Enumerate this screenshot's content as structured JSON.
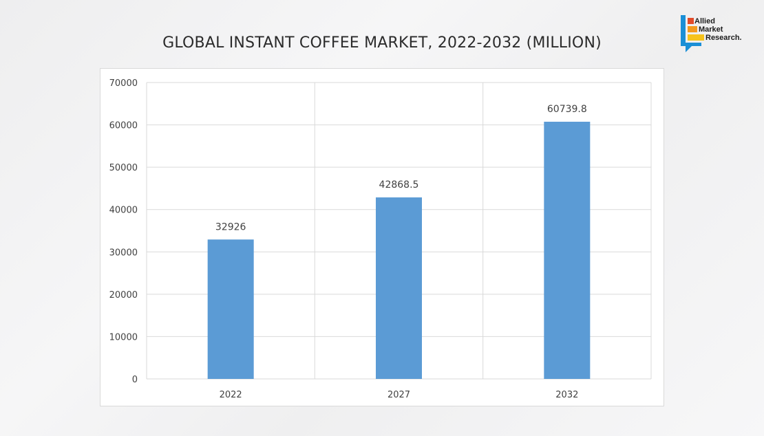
{
  "header": {
    "title": "GLOBAL INSTANT COFFEE MARKET, 2022-2032 (MILLION)"
  },
  "logo": {
    "line1": "Allied",
    "line2": "Market",
    "line3": "Research."
  },
  "colors": {
    "bar": "#5b9bd5",
    "grid": "#d9d9d9",
    "text": "#404040"
  },
  "chart_data": {
    "type": "bar",
    "title": "GLOBAL INSTANT COFFEE MARKET, 2022-2032 (MILLION)",
    "categories": [
      "2022",
      "2027",
      "2032"
    ],
    "values": [
      32926,
      42868.5,
      60739.8
    ],
    "data_labels": [
      "32926",
      "42868.5",
      "60739.8"
    ],
    "y_ticks": [
      0,
      10000,
      20000,
      30000,
      40000,
      50000,
      60000,
      70000
    ],
    "ylim": [
      0,
      70000
    ],
    "xlabel": "",
    "ylabel": "",
    "grid": true,
    "legend": "none"
  }
}
